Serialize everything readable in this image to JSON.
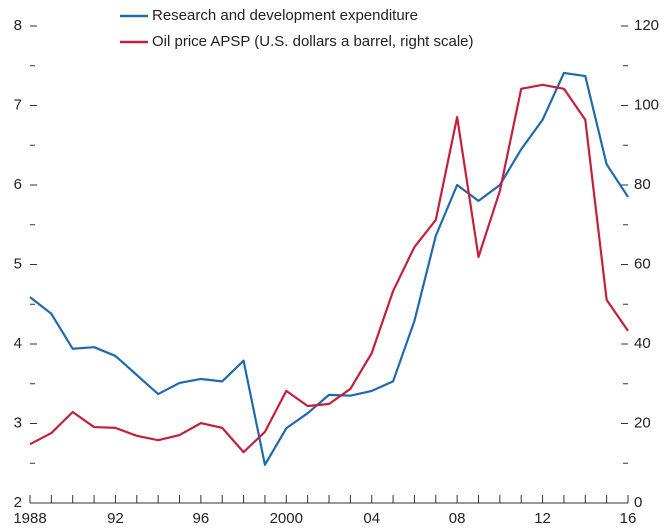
{
  "chart_data": {
    "type": "line",
    "x": [
      1988,
      1989,
      1990,
      1991,
      1992,
      1993,
      1994,
      1995,
      1996,
      1997,
      1998,
      1999,
      2000,
      2001,
      2002,
      2003,
      2004,
      2005,
      2006,
      2007,
      2008,
      2009,
      2010,
      2011,
      2012,
      2013,
      2014,
      2015,
      2016
    ],
    "series": [
      {
        "name": "Research and development expenditure",
        "color": "#1f6aad",
        "values": [
          4.59,
          4.38,
          3.94,
          3.96,
          3.85,
          3.61,
          3.37,
          3.51,
          3.56,
          3.53,
          3.79,
          2.48,
          2.94,
          3.13,
          3.36,
          3.35,
          3.41,
          3.53,
          4.29,
          5.36,
          6.0,
          5.8,
          6.0,
          6.45,
          6.82,
          7.41,
          7.37,
          6.26,
          5.85
        ]
      },
      {
        "name": "Oil price APSP (U.S. dollars a barrel, right scale)",
        "color": "#c3203c",
        "axis": "y2",
        "values": [
          14.8,
          17.6,
          22.9,
          19.1,
          18.9,
          16.9,
          15.8,
          17.1,
          20.1,
          18.9,
          12.8,
          17.9,
          28.2,
          24.4,
          24.9,
          28.7,
          37.7,
          53.3,
          64.4,
          71.2,
          97.1,
          61.9,
          78.5,
          104.2,
          105.2,
          104.2,
          96.4,
          51.1,
          43.3
        ]
      }
    ],
    "xlim": [
      1988,
      2016
    ],
    "xticks": [
      {
        "value": 1988,
        "label": "1988"
      },
      {
        "value": 1992,
        "label": "92"
      },
      {
        "value": 1996,
        "label": "96"
      },
      {
        "value": 2000,
        "label": "2000"
      },
      {
        "value": 2004,
        "label": "04"
      },
      {
        "value": 2008,
        "label": "08"
      },
      {
        "value": 2012,
        "label": "12"
      },
      {
        "value": 2016,
        "label": "16"
      }
    ],
    "xminorticks": [
      1989,
      1990,
      1991,
      1993,
      1994,
      1995,
      1997,
      1998,
      1999,
      2001,
      2002,
      2003,
      2005,
      2006,
      2007,
      2009,
      2010,
      2011,
      2013,
      2014,
      2015
    ],
    "ylim": [
      2,
      8
    ],
    "yticks": [
      2,
      3,
      4,
      5,
      6,
      7,
      8
    ],
    "yminorticks": [
      2.5,
      3.5,
      4.5,
      5.5,
      6.5,
      7.5
    ],
    "y2lim": [
      0,
      120
    ],
    "y2ticks": [
      0,
      20,
      40,
      60,
      80,
      100,
      120
    ],
    "y2minorticks": [
      10,
      30,
      50,
      70,
      90,
      110
    ],
    "legend": "top-left"
  }
}
